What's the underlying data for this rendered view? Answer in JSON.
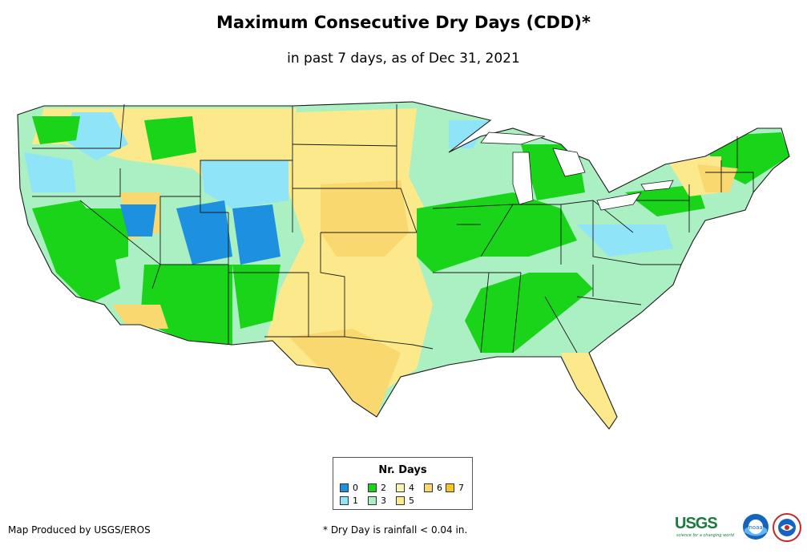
{
  "title": "Maximum Consecutive Dry Days (CDD)*",
  "subtitle": "in past 7 days, as of Dec 31, 2021",
  "legend": {
    "title": "Nr. Days",
    "items": [
      {
        "label": "0",
        "color": "#1e90e0"
      },
      {
        "label": "1",
        "color": "#8fe4f7"
      },
      {
        "label": "2",
        "color": "#19d419"
      },
      {
        "label": "3",
        "color": "#abf0c2"
      },
      {
        "label": "4",
        "color": "#f6f5b4"
      },
      {
        "label": "5",
        "color": "#fbe98b"
      },
      {
        "label": "6",
        "color": "#f9d86f"
      },
      {
        "label": "7",
        "color": "#f8c623"
      }
    ]
  },
  "footer": {
    "credit": "Map Produced by USGS/EROS",
    "note": "* Dry Day is rainfall < 0.04 in."
  },
  "logos": {
    "usgs": "USGS",
    "usgs_tagline": "science for a changing world",
    "noaa": "noaa"
  }
}
